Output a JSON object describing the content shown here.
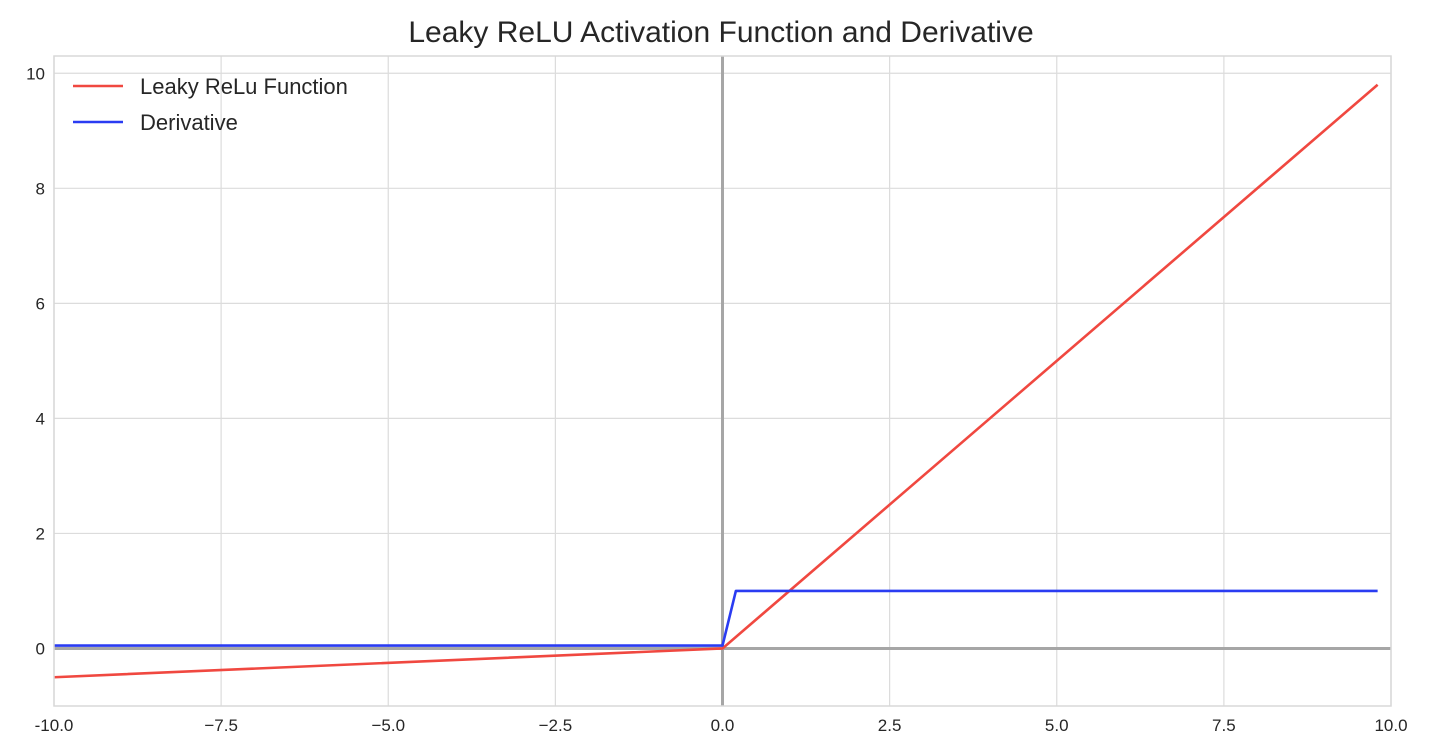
{
  "chart_data": {
    "type": "line",
    "title": "Leaky ReLU Activation Function and Derivative",
    "xlabel": "",
    "ylabel": "",
    "xlim": [
      -10.0,
      10.0
    ],
    "ylim": [
      -1.0,
      10.3
    ],
    "grid": true,
    "legend_position": "top-left",
    "x_ticks": [
      -10.0,
      -7.5,
      -5.0,
      -2.5,
      0.0,
      2.5,
      5.0,
      7.5,
      10.0
    ],
    "x_tick_labels": [
      "-10.0",
      "−7.5",
      "−5.0",
      "−2.5",
      "0.0",
      "2.5",
      "5.0",
      "7.5",
      "10.0"
    ],
    "y_ticks": [
      0,
      2,
      4,
      6,
      8,
      10
    ],
    "y_tick_labels": [
      "0",
      "2",
      "4",
      "6",
      "8",
      "10"
    ],
    "reference_lines": {
      "x": 0,
      "y": 0,
      "color": "#a6a6a6"
    },
    "series": [
      {
        "name": "Leaky ReLu Function",
        "color": "#f04840",
        "x": [
          -10.0,
          0.0,
          9.8
        ],
        "y": [
          -0.5,
          0.0,
          9.8
        ]
      },
      {
        "name": "Derivative",
        "color": "#2a3cf2",
        "x": [
          -10.0,
          0.0,
          0.2,
          9.8
        ],
        "y": [
          0.05,
          0.05,
          1.0,
          1.0
        ]
      }
    ]
  }
}
